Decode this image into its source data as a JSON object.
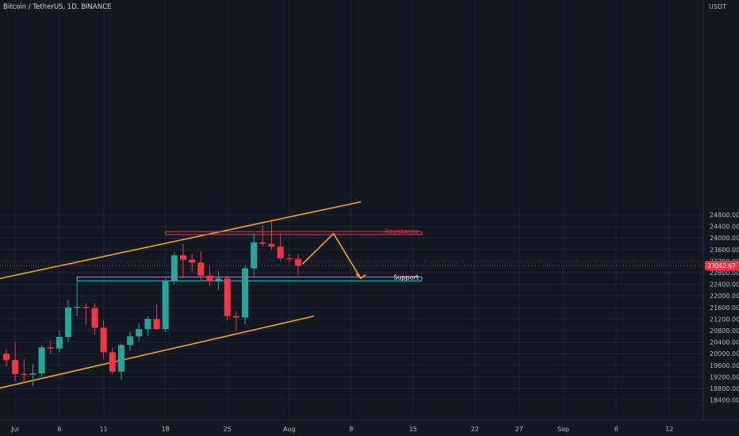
{
  "header": {
    "title": "Bitcoin / TetherUS, 1D, BINANCE"
  },
  "price_axis": {
    "currency": "USDT"
  },
  "colors": {
    "background": "#131722",
    "grid": "#1f2330",
    "up": "#26a69a",
    "down": "#f23645",
    "channel": "#f7a21b",
    "resistance": "#f23645",
    "support": "#26c6da",
    "axis_text": "#b2b5be"
  },
  "chart_data": {
    "type": "candlestick",
    "title": "Bitcoin / TetherUS, 1D, BINANCE",
    "ylabel": "USDT",
    "ylim": [
      18160,
      25350
    ],
    "y_ticks": [
      18400,
      18800,
      19200,
      19600,
      20000,
      20400,
      20800,
      21200,
      21600,
      22000,
      22400,
      22800,
      23200,
      23600,
      24000,
      24400,
      24800
    ],
    "x_ticks": [
      {
        "label": "Jul",
        "day": 1
      },
      {
        "label": "6",
        "day": 6
      },
      {
        "label": "11",
        "day": 11
      },
      {
        "label": "18",
        "day": 18
      },
      {
        "label": "25",
        "day": 25
      },
      {
        "label": "Aug",
        "day": 32
      },
      {
        "label": "8",
        "day": 39
      },
      {
        "label": "15",
        "day": 46
      },
      {
        "label": "22",
        "day": 53
      },
      {
        "label": "27",
        "day": 58
      },
      {
        "label": "Sep",
        "day": 63
      },
      {
        "label": "6",
        "day": 69
      },
      {
        "label": "12",
        "day": 75
      }
    ],
    "last_price": "23042.67",
    "candles": [
      {
        "day": 0,
        "o": 20000,
        "h": 20150,
        "l": 19550,
        "c": 19780
      },
      {
        "day": 1,
        "o": 19780,
        "h": 20400,
        "l": 19050,
        "c": 19300
      },
      {
        "day": 2,
        "o": 19300,
        "h": 19800,
        "l": 19000,
        "c": 19280
      },
      {
        "day": 3,
        "o": 19280,
        "h": 19650,
        "l": 18900,
        "c": 19320
      },
      {
        "day": 4,
        "o": 19320,
        "h": 20300,
        "l": 19200,
        "c": 20220
      },
      {
        "day": 5,
        "o": 20220,
        "h": 20450,
        "l": 20000,
        "c": 20180
      },
      {
        "day": 6,
        "o": 20180,
        "h": 20800,
        "l": 20050,
        "c": 20580
      },
      {
        "day": 7,
        "o": 20580,
        "h": 21850,
        "l": 20400,
        "c": 21600
      },
      {
        "day": 8,
        "o": 21600,
        "h": 22550,
        "l": 21300,
        "c": 21620
      },
      {
        "day": 9,
        "o": 21620,
        "h": 21750,
        "l": 21000,
        "c": 21580
      },
      {
        "day": 10,
        "o": 21580,
        "h": 21750,
        "l": 20650,
        "c": 20900
      },
      {
        "day": 11,
        "o": 20900,
        "h": 21150,
        "l": 19800,
        "c": 20050
      },
      {
        "day": 12,
        "o": 20050,
        "h": 20200,
        "l": 19300,
        "c": 19380
      },
      {
        "day": 13,
        "o": 19380,
        "h": 20350,
        "l": 19100,
        "c": 20300
      },
      {
        "day": 14,
        "o": 20300,
        "h": 20750,
        "l": 20100,
        "c": 20600
      },
      {
        "day": 15,
        "o": 20600,
        "h": 21050,
        "l": 20450,
        "c": 20850
      },
      {
        "day": 16,
        "o": 20850,
        "h": 21300,
        "l": 20600,
        "c": 21200
      },
      {
        "day": 17,
        "o": 21200,
        "h": 21700,
        "l": 20850,
        "c": 20850
      },
      {
        "day": 18,
        "o": 20850,
        "h": 22600,
        "l": 20750,
        "c": 22500
      },
      {
        "day": 19,
        "o": 22500,
        "h": 23500,
        "l": 22400,
        "c": 23400
      },
      {
        "day": 20,
        "o": 23400,
        "h": 23800,
        "l": 22600,
        "c": 23250
      },
      {
        "day": 21,
        "o": 23250,
        "h": 23450,
        "l": 22850,
        "c": 23150
      },
      {
        "day": 22,
        "o": 23150,
        "h": 23550,
        "l": 22500,
        "c": 22700
      },
      {
        "day": 23,
        "o": 22700,
        "h": 23050,
        "l": 22350,
        "c": 22500
      },
      {
        "day": 24,
        "o": 22500,
        "h": 22850,
        "l": 22200,
        "c": 22600
      },
      {
        "day": 25,
        "o": 22600,
        "h": 22700,
        "l": 21150,
        "c": 21300
      },
      {
        "day": 26,
        "o": 21300,
        "h": 21450,
        "l": 20800,
        "c": 21250
      },
      {
        "day": 27,
        "o": 21250,
        "h": 23050,
        "l": 21000,
        "c": 22950
      },
      {
        "day": 28,
        "o": 22950,
        "h": 24150,
        "l": 22650,
        "c": 23850
      },
      {
        "day": 29,
        "o": 23850,
        "h": 24450,
        "l": 23700,
        "c": 23800
      },
      {
        "day": 30,
        "o": 23800,
        "h": 24650,
        "l": 23600,
        "c": 23700
      },
      {
        "day": 31,
        "o": 23700,
        "h": 24150,
        "l": 23200,
        "c": 23300
      },
      {
        "day": 32,
        "o": 23300,
        "h": 23450,
        "l": 23150,
        "c": 23280
      },
      {
        "day": 33,
        "o": 23280,
        "h": 23450,
        "l": 22700,
        "c": 23040
      }
    ],
    "channel": {
      "upper": [
        {
          "day": -3.8,
          "price": 22400
        },
        {
          "day": 40.1,
          "price": 25250
        }
      ],
      "lower": [
        {
          "day": -3.8,
          "price": 18600
        },
        {
          "day": 34.8,
          "price": 21300
        }
      ]
    },
    "resistance": {
      "label": "Resistance",
      "from_day": 18,
      "to_day": 47,
      "low": 24120,
      "high": 24220
    },
    "support": {
      "label": "Support",
      "from_day": 8,
      "to_day": 47,
      "low": 22520,
      "high": 22650
    },
    "projection": [
      {
        "day": 33.5,
        "price": 23100
      },
      {
        "day": 37.0,
        "price": 24150
      },
      {
        "day": 40.1,
        "price": 22600
      }
    ]
  }
}
